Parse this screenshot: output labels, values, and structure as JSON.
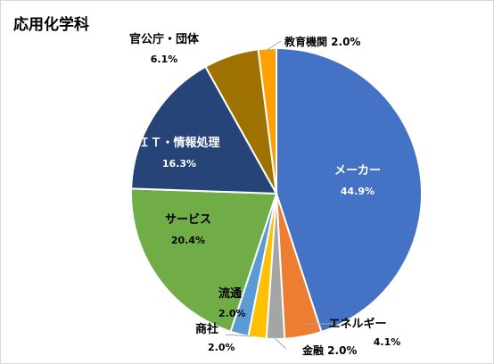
{
  "chart_data": {
    "type": "pie",
    "title": "応用化学科",
    "start_angle_deg": 0,
    "direction": "clockwise",
    "slices": [
      {
        "label": "メーカー",
        "value": 44.9,
        "display": "44.9%",
        "color": "#4472c4",
        "label_style": "inside"
      },
      {
        "label": "エネルギー",
        "value": 4.1,
        "display": "4.1%",
        "color": "#ed7d31",
        "label_style": "outside"
      },
      {
        "label": "金融",
        "value": 2.0,
        "display": "2.0%",
        "color": "#a5a5a5",
        "label_style": "outside-inline"
      },
      {
        "label": "商社",
        "value": 2.0,
        "display": "2.0%",
        "color": "#ffc000",
        "label_style": "outside"
      },
      {
        "label": "流通",
        "value": 2.0,
        "display": "2.0%",
        "color": "#5b9bd5",
        "label_style": "outside"
      },
      {
        "label": "サービス",
        "value": 20.4,
        "display": "20.4%",
        "color": "#70ad47",
        "label_style": "inside"
      },
      {
        "label": "ＩＴ・情報処理",
        "value": 16.3,
        "display": "16.3%",
        "color": "#264478",
        "label_style": "inside"
      },
      {
        "label": "官公庁・団体",
        "value": 6.1,
        "display": "6.1%",
        "color": "#9e7100",
        "label_style": "outside"
      },
      {
        "label": "教育機関",
        "value": 2.0,
        "display": "2.0%",
        "color": "#ff9f00",
        "label_style": "outside-inline"
      }
    ]
  }
}
